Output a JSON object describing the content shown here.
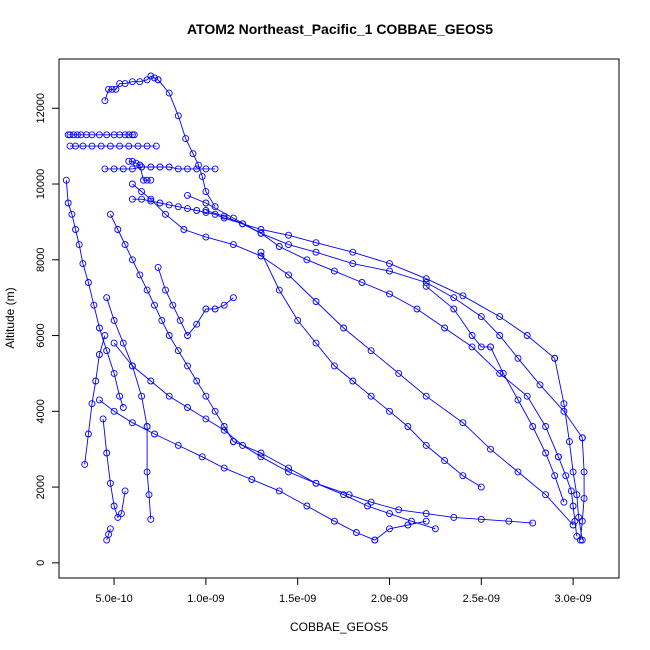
{
  "chart_data": {
    "type": "line",
    "title": "ATOM2 Northeast_Pacific_1 COBBAE_GEOS5",
    "xlabel": "COBBAE_GEOS5",
    "ylabel": "Altitude (m)",
    "xlim": [
      2e-10,
      3.25e-09
    ],
    "ylim": [
      -400,
      13300
    ],
    "x_ticks": [
      {
        "value": 5e-10,
        "label": "5.0e-10"
      },
      {
        "value": 1e-09,
        "label": "1.0e-09"
      },
      {
        "value": 1.5e-09,
        "label": "1.5e-09"
      },
      {
        "value": 2e-09,
        "label": "2.0e-09"
      },
      {
        "value": 2.5e-09,
        "label": "2.5e-09"
      },
      {
        "value": 3e-09,
        "label": "3.0e-09"
      }
    ],
    "y_ticks": [
      {
        "value": 0,
        "label": "0"
      },
      {
        "value": 2000,
        "label": "2000"
      },
      {
        "value": 4000,
        "label": "4000"
      },
      {
        "value": 6000,
        "label": "6000"
      },
      {
        "value": 8000,
        "label": "8000"
      },
      {
        "value": 10000,
        "label": "10000"
      },
      {
        "value": 12000,
        "label": "12000"
      }
    ],
    "line_color": "#0000ff",
    "marker": "open-circle",
    "grid": false,
    "legend": "none",
    "profiles": [
      {
        "x": [
          2.5e-10,
          2.6e-10,
          2.8e-10,
          3e-10,
          3.2e-10,
          3.5e-10,
          3.8e-10,
          4.2e-10,
          4.6e-10,
          5e-10,
          5.3e-10,
          5.6e-10,
          5.8e-10,
          6e-10,
          6.1e-10
        ],
        "y": [
          11300,
          11300,
          11300,
          11300,
          11300,
          11300,
          11300,
          11300,
          11300,
          11300,
          11300,
          11300,
          11300,
          11300,
          11300
        ]
      },
      {
        "x": [
          2.6e-10,
          2.9e-10,
          3.3e-10,
          3.8e-10,
          4.3e-10,
          4.8e-10,
          5.3e-10,
          5.8e-10,
          6.3e-10,
          6.8e-10,
          7.3e-10
        ],
        "y": [
          11000,
          11000,
          11000,
          11000,
          11000,
          11000,
          11000,
          11000,
          11000,
          11000,
          11000
        ]
      },
      {
        "x": [
          4.5e-10,
          4.7e-10,
          4.9e-10,
          5.1e-10,
          5.3e-10,
          5.6e-10,
          6e-10,
          6.4e-10,
          6.8e-10,
          7e-10,
          7.2e-10,
          7.4e-10
        ],
        "y": [
          12200,
          12500,
          12500,
          12500,
          12650,
          12650,
          12700,
          12700,
          12750,
          12850,
          12800,
          12750
        ]
      },
      {
        "x": [
          7.4e-10,
          8e-10,
          8.5e-10,
          8.9e-10,
          9.3e-10,
          9.6e-10,
          9.8e-10,
          1e-09,
          1.05e-09
        ],
        "y": [
          12750,
          12400,
          11800,
          11200,
          10800,
          10500,
          10200,
          9800,
          9400
        ]
      },
      {
        "x": [
          2.4e-10,
          2.5e-10,
          2.7e-10,
          2.9e-10,
          3.1e-10,
          3.3e-10,
          3.6e-10,
          3.9e-10,
          4.2e-10,
          4.6e-10,
          5e-10,
          5.3e-10,
          5.5e-10
        ],
        "y": [
          10100,
          9500,
          9200,
          8800,
          8400,
          7900,
          7400,
          6800,
          6200,
          5600,
          5000,
          4400,
          4100
        ]
      },
      {
        "x": [
          4.5e-10,
          5e-10,
          5.5e-10,
          6e-10,
          6.5e-10,
          7e-10,
          7.5e-10,
          8e-10,
          8.5e-10,
          9e-10,
          9.5e-10,
          1e-09,
          1.05e-09
        ],
        "y": [
          10400,
          10400,
          10400,
          10400,
          10450,
          10450,
          10450,
          10450,
          10400,
          10400,
          10400,
          10400,
          10400
        ]
      },
      {
        "x": [
          5.8e-10,
          6e-10,
          6.2e-10,
          6.4e-10,
          6.6e-10,
          6.8e-10,
          7e-10
        ],
        "y": [
          10600,
          10600,
          10550,
          10500,
          10100,
          10100,
          10100
        ]
      },
      {
        "x": [
          6e-10,
          6.5e-10,
          7e-10,
          7.5e-10,
          8e-10,
          8.5e-10,
          9e-10,
          9.5e-10,
          1e-09,
          1.05e-09,
          1.1e-09,
          1.2e-09,
          1.3e-09,
          1.45e-09,
          1.6e-09,
          1.8e-09,
          2e-09,
          2.2e-09,
          2.4e-09,
          2.6e-09,
          2.75e-09,
          2.9e-09
        ],
        "y": [
          9600,
          9600,
          9550,
          9500,
          9450,
          9400,
          9350,
          9300,
          9250,
          9200,
          9100,
          8950,
          8800,
          8650,
          8450,
          8200,
          7900,
          7500,
          7050,
          6500,
          6000,
          5400
        ]
      },
      {
        "x": [
          2.9e-09,
          2.95e-09,
          2.98e-09,
          3e-09,
          3.02e-09,
          3.03e-09,
          3.05e-09
        ],
        "y": [
          5400,
          4200,
          3200,
          2400,
          1800,
          1200,
          600
        ]
      },
      {
        "x": [
          1e-09,
          1.1e-09,
          1.2e-09,
          1.3e-09,
          1.4e-09,
          1.55e-09,
          1.7e-09,
          1.85e-09,
          2e-09,
          2.15e-09,
          2.3e-09,
          2.45e-09,
          2.6e-09,
          2.75e-09,
          2.85e-09,
          2.92e-09
        ],
        "y": [
          9300,
          9150,
          8950,
          8700,
          8350,
          8000,
          7700,
          7400,
          7100,
          6700,
          6200,
          5700,
          5000,
          4400,
          3600,
          2800
        ]
      },
      {
        "x": [
          2.92e-09,
          2.96e-09,
          2.99e-09,
          3e-09,
          3.01e-09,
          3.02e-09
        ],
        "y": [
          2800,
          2300,
          1900,
          1500,
          1100,
          700
        ]
      },
      {
        "x": [
          9e-10,
          1e-09,
          1.15e-09,
          1.3e-09,
          1.45e-09,
          1.6e-09,
          1.8e-09,
          2e-09,
          2.2e-09,
          2.35e-09,
          2.5e-09,
          2.6e-09,
          2.7e-09,
          2.82e-09,
          2.95e-09,
          3.05e-09
        ],
        "y": [
          9700,
          9500,
          9100,
          8700,
          8400,
          8200,
          7900,
          7700,
          7400,
          7000,
          6500,
          6000,
          5400,
          4700,
          4000,
          3300
        ]
      },
      {
        "x": [
          3.05e-09,
          3.06e-09,
          3.06e-09,
          3.05e-09,
          3.04e-09
        ],
        "y": [
          3300,
          2400,
          1700,
          1100,
          600
        ]
      },
      {
        "x": [
          6e-10,
          6.5e-10,
          7e-10,
          7.8e-10,
          8.8e-10,
          1e-09,
          1.15e-09,
          1.3e-09,
          1.45e-09,
          1.6e-09,
          1.75e-09,
          1.9e-09,
          2.05e-09,
          2.2e-09,
          2.4e-09,
          2.55e-09,
          2.7e-09,
          2.85e-09,
          3e-09
        ],
        "y": [
          10000,
          9800,
          9600,
          9200,
          8800,
          8600,
          8400,
          8100,
          7600,
          6900,
          6200,
          5600,
          5000,
          4400,
          3700,
          3000,
          2400,
          1800,
          1000
        ]
      },
      {
        "x": [
          4.8e-10,
          5.2e-10,
          5.6e-10,
          6e-10,
          6.4e-10,
          6.8e-10,
          7.2e-10,
          7.6e-10,
          8e-10,
          8.5e-10,
          9e-10,
          9.5e-10,
          1e-09,
          1.05e-09,
          1.1e-09,
          1.15e-09
        ],
        "y": [
          9200,
          8800,
          8400,
          8000,
          7600,
          7200,
          6800,
          6400,
          6000,
          5600,
          5200,
          4800,
          4400,
          4000,
          3600,
          3200
        ]
      },
      {
        "x": [
          1.15e-09,
          1.3e-09,
          1.45e-09,
          1.6e-09,
          1.78e-09,
          1.9e-09,
          2.05e-09,
          2.2e-09,
          2.35e-09,
          2.5e-09,
          2.65e-09,
          2.78e-09
        ],
        "y": [
          3200,
          2900,
          2500,
          2100,
          1800,
          1600,
          1400,
          1300,
          1200,
          1150,
          1100,
          1050
        ]
      },
      {
        "x": [
          5e-10,
          6e-10,
          7e-10,
          8e-10,
          9e-10,
          1e-09,
          1.1e-09,
          1.2e-09,
          1.3e-09,
          1.45e-09,
          1.6e-09,
          1.75e-09,
          1.88e-09,
          2e-09,
          2.12e-09,
          2.25e-09
        ],
        "y": [
          5800,
          5200,
          4800,
          4400,
          4100,
          3800,
          3500,
          3100,
          2800,
          2400,
          2100,
          1800,
          1500,
          1300,
          1100,
          900
        ]
      },
      {
        "x": [
          4.2e-10,
          5e-10,
          6e-10,
          7.2e-10,
          8.5e-10,
          9.8e-10,
          1.1e-09,
          1.25e-09,
          1.4e-09,
          1.55e-09,
          1.7e-09,
          1.82e-09,
          1.92e-09
        ],
        "y": [
          4300,
          4000,
          3700,
          3400,
          3100,
          2800,
          2500,
          2200,
          1900,
          1500,
          1100,
          800,
          600
        ]
      },
      {
        "x": [
          1.92e-09,
          2e-09,
          2.1e-09,
          2.2e-09
        ],
        "y": [
          600,
          900,
          1000,
          1100
        ]
      },
      {
        "x": [
          4.6e-10,
          5e-10,
          5.5e-10,
          6e-10,
          6.5e-10,
          6.8e-10
        ],
        "y": [
          7000,
          6400,
          5800,
          5200,
          4400,
          3600
        ]
      },
      {
        "x": [
          6.8e-10,
          6.8e-10,
          6.9e-10,
          7e-10
        ],
        "y": [
          3600,
          2400,
          1800,
          1150
        ]
      },
      {
        "x": [
          3.4e-10,
          3.6e-10,
          3.8e-10,
          4e-10,
          4.2e-10,
          4.5e-10
        ],
        "y": [
          2600,
          3400,
          4200,
          4800,
          5500,
          6000
        ]
      },
      {
        "x": [
          4.4e-10,
          4.6e-10,
          4.8e-10,
          5e-10,
          5.2e-10,
          5.4e-10,
          5.6e-10
        ],
        "y": [
          3800,
          2900,
          2100,
          1500,
          1200,
          1300,
          1900
        ]
      },
      {
        "x": [
          4.6e-10,
          4.7e-10,
          4.8e-10
        ],
        "y": [
          600,
          750,
          900
        ]
      },
      {
        "x": [
          7.4e-10,
          7.8e-10,
          8.2e-10,
          8.6e-10,
          9e-10,
          9.5e-10,
          1e-09,
          1.05e-09,
          1.1e-09,
          1.15e-09
        ],
        "y": [
          7800,
          7200,
          6800,
          6400,
          6000,
          6300,
          6700,
          6700,
          6800,
          7000
        ]
      },
      {
        "x": [
          1.3e-09,
          1.4e-09,
          1.5e-09,
          1.6e-09,
          1.7e-09,
          1.8e-09,
          1.9e-09,
          2e-09,
          2.1e-09,
          2.2e-09,
          2.3e-09,
          2.4e-09,
          2.5e-09
        ],
        "y": [
          8200,
          7200,
          6400,
          5800,
          5200,
          4800,
          4400,
          4000,
          3600,
          3100,
          2700,
          2300,
          2000
        ]
      },
      {
        "x": [
          2.2e-09,
          2.35e-09,
          2.45e-09,
          2.5e-09,
          2.55e-09
        ],
        "y": [
          7300,
          6700,
          6000,
          5700,
          5700
        ]
      },
      {
        "x": [
          2.55e-09,
          2.62e-09,
          2.7e-09,
          2.78e-09,
          2.85e-09,
          2.9e-09,
          2.95e-09
        ],
        "y": [
          5700,
          5000,
          4300,
          3600,
          2900,
          2300,
          1600
        ]
      }
    ]
  }
}
